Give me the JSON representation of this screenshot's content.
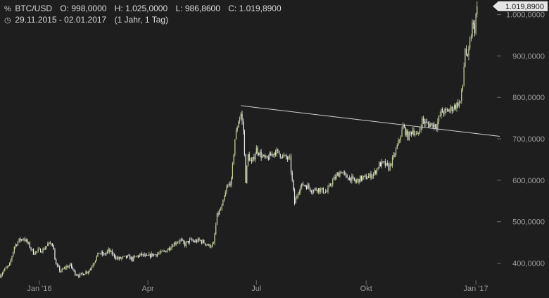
{
  "header": {
    "pair_icon": "percent-icon",
    "pair": "BTC/USD",
    "open": "O: 998,0000",
    "high": "H: 1.025,0000",
    "low": "L: 986,8600",
    "close": "C: 1.019,8900",
    "clock_icon": "clock-icon",
    "range": "29.11.2015 - 02.01.2017",
    "interval": "(1 Jahr, 1 Tag)"
  },
  "colors": {
    "background": "#1e1e1e",
    "up": "#c9dba0",
    "down": "#f2f2f2",
    "trendline": "#cfcfcf",
    "last_label_bg": "#e6e6e6"
  },
  "chart_data": {
    "type": "candlestick",
    "title": "",
    "xlabel": "",
    "ylabel": "",
    "ylim": [
      355,
      1035
    ],
    "y_ticks": [
      400,
      500,
      600,
      700,
      800,
      900,
      1000
    ],
    "y_tick_labels": [
      "400,0000",
      "500,0000",
      "600,0000",
      "700,0000",
      "800,0000",
      "900,0000",
      "1.000,0000"
    ],
    "x_range": [
      "2015-11-29",
      "2017-01-21"
    ],
    "x_ticks": [
      "2016-01-01",
      "2016-04-01",
      "2016-07-01",
      "2016-10-01",
      "2017-01-01"
    ],
    "x_tick_labels": [
      "Jan '16",
      "Apr",
      "Jul",
      "Okt",
      "Jan '17"
    ],
    "last_value_label": "1.019,8900",
    "trendline": {
      "start": [
        "2016-06-18",
        780
      ],
      "end": [
        "2017-01-21",
        706
      ]
    },
    "close_path": [
      [
        "2015-11-29",
        370
      ],
      [
        "2015-12-03",
        385
      ],
      [
        "2015-12-07",
        395
      ],
      [
        "2015-12-11",
        440
      ],
      [
        "2015-12-15",
        455
      ],
      [
        "2015-12-19",
        460
      ],
      [
        "2015-12-23",
        445
      ],
      [
        "2015-12-27",
        425
      ],
      [
        "2015-12-31",
        430
      ],
      [
        "2016-01-04",
        432
      ],
      [
        "2016-01-08",
        445
      ],
      [
        "2016-01-12",
        448
      ],
      [
        "2016-01-15",
        395
      ],
      [
        "2016-01-19",
        380
      ],
      [
        "2016-01-23",
        390
      ],
      [
        "2016-01-27",
        395
      ],
      [
        "2016-01-31",
        375
      ],
      [
        "2016-02-04",
        370
      ],
      [
        "2016-02-08",
        377
      ],
      [
        "2016-02-12",
        383
      ],
      [
        "2016-02-16",
        405
      ],
      [
        "2016-02-20",
        425
      ],
      [
        "2016-02-24",
        420
      ],
      [
        "2016-02-28",
        430
      ],
      [
        "2016-03-03",
        420
      ],
      [
        "2016-03-07",
        410
      ],
      [
        "2016-03-11",
        413
      ],
      [
        "2016-03-15",
        415
      ],
      [
        "2016-03-19",
        410
      ],
      [
        "2016-03-23",
        417
      ],
      [
        "2016-03-27",
        420
      ],
      [
        "2016-03-31",
        415
      ],
      [
        "2016-04-04",
        420
      ],
      [
        "2016-04-08",
        422
      ],
      [
        "2016-04-12",
        425
      ],
      [
        "2016-04-16",
        430
      ],
      [
        "2016-04-20",
        440
      ],
      [
        "2016-04-24",
        450
      ],
      [
        "2016-04-28",
        455
      ],
      [
        "2016-05-02",
        445
      ],
      [
        "2016-05-06",
        455
      ],
      [
        "2016-05-10",
        452
      ],
      [
        "2016-05-14",
        455
      ],
      [
        "2016-05-18",
        450
      ],
      [
        "2016-05-22",
        442
      ],
      [
        "2016-05-26",
        445
      ],
      [
        "2016-05-29",
        515
      ],
      [
        "2016-06-02",
        535
      ],
      [
        "2016-06-06",
        580
      ],
      [
        "2016-06-10",
        600
      ],
      [
        "2016-06-13",
        700
      ],
      [
        "2016-06-16",
        745
      ],
      [
        "2016-06-18",
        760
      ],
      [
        "2016-06-20",
        720
      ],
      [
        "2016-06-22",
        600
      ],
      [
        "2016-06-24",
        660
      ],
      [
        "2016-06-27",
        640
      ],
      [
        "2016-07-01",
        675
      ],
      [
        "2016-07-05",
        660
      ],
      [
        "2016-07-09",
        650
      ],
      [
        "2016-07-13",
        660
      ],
      [
        "2016-07-17",
        670
      ],
      [
        "2016-07-21",
        662
      ],
      [
        "2016-07-25",
        655
      ],
      [
        "2016-07-29",
        650
      ],
      [
        "2016-08-02",
        545
      ],
      [
        "2016-08-05",
        575
      ],
      [
        "2016-08-09",
        590
      ],
      [
        "2016-08-13",
        585
      ],
      [
        "2016-08-17",
        575
      ],
      [
        "2016-08-21",
        580
      ],
      [
        "2016-08-25",
        575
      ],
      [
        "2016-08-29",
        572
      ],
      [
        "2016-09-02",
        595
      ],
      [
        "2016-09-06",
        610
      ],
      [
        "2016-09-10",
        622
      ],
      [
        "2016-09-14",
        608
      ],
      [
        "2016-09-18",
        605
      ],
      [
        "2016-09-22",
        596
      ],
      [
        "2016-09-26",
        604
      ],
      [
        "2016-09-30",
        606
      ],
      [
        "2016-10-04",
        610
      ],
      [
        "2016-10-08",
        618
      ],
      [
        "2016-10-12",
        638
      ],
      [
        "2016-10-16",
        640
      ],
      [
        "2016-10-20",
        630
      ],
      [
        "2016-10-24",
        655
      ],
      [
        "2016-10-28",
        690
      ],
      [
        "2016-11-01",
        730
      ],
      [
        "2016-11-05",
        705
      ],
      [
        "2016-11-09",
        722
      ],
      [
        "2016-11-13",
        705
      ],
      [
        "2016-11-17",
        745
      ],
      [
        "2016-11-21",
        735
      ],
      [
        "2016-11-25",
        735
      ],
      [
        "2016-11-29",
        733
      ],
      [
        "2016-12-03",
        765
      ],
      [
        "2016-12-07",
        765
      ],
      [
        "2016-12-11",
        772
      ],
      [
        "2016-12-15",
        780
      ],
      [
        "2016-12-19",
        790
      ],
      [
        "2016-12-21",
        830
      ],
      [
        "2016-12-23",
        920
      ],
      [
        "2016-12-25",
        890
      ],
      [
        "2016-12-27",
        930
      ],
      [
        "2016-12-29",
        975
      ],
      [
        "2016-12-31",
        965
      ],
      [
        "2017-01-01",
        998
      ],
      [
        "2017-01-02",
        1019.89
      ]
    ]
  }
}
